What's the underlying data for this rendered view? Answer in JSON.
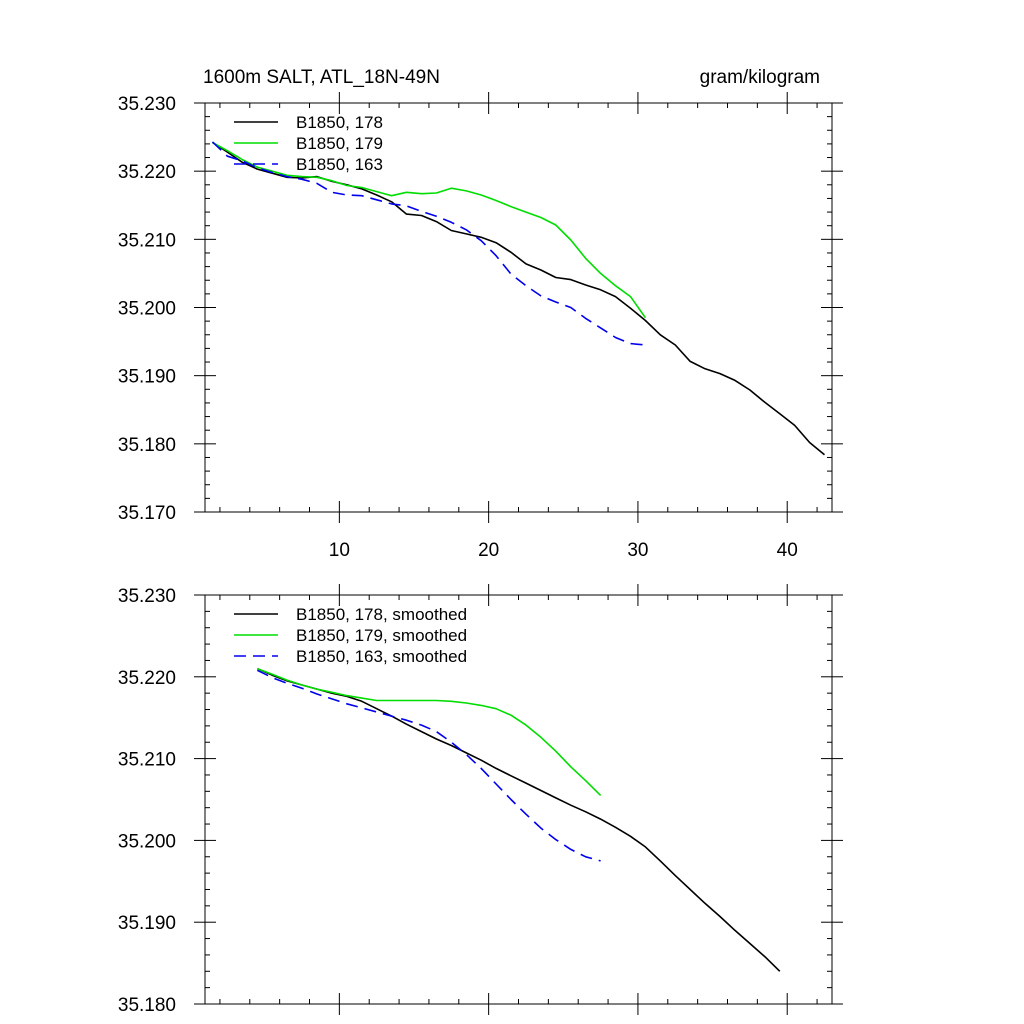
{
  "chart_data": [
    {
      "type": "line",
      "title": "1600m SALT, ATL_18N-49N",
      "units": "gram/kilogram",
      "xlim": [
        1,
        43
      ],
      "ylim": [
        35.17,
        35.23
      ],
      "xticks": [
        10,
        20,
        30,
        40
      ],
      "xtick_labels": [
        "10",
        "20",
        "30",
        "40"
      ],
      "yticks": [
        35.17,
        35.18,
        35.19,
        35.2,
        35.21,
        35.22,
        35.23
      ],
      "ytick_labels": [
        "35.170",
        "35.180",
        "35.190",
        "35.200",
        "35.210",
        "35.220",
        "35.230"
      ],
      "legend_position": "top-left",
      "series": [
        {
          "name": "B1850, 178",
          "color": "#000000",
          "dash": "solid",
          "x": [
            1.5,
            2.5,
            3.5,
            4.5,
            5.5,
            6.5,
            7.5,
            8.5,
            9.5,
            10.5,
            11.5,
            12.5,
            13.5,
            14.5,
            15.5,
            16.5,
            17.5,
            18.5,
            19.5,
            20.5,
            21.5,
            22.5,
            23.5,
            24.5,
            25.5,
            26.5,
            27.5,
            28.5,
            29.5,
            30.5,
            31.5,
            32.5,
            33.5,
            34.5,
            35.5,
            36.5,
            37.5,
            38.5,
            39.5,
            40.5,
            41.5,
            42.5
          ],
          "y": [
            35.2242,
            35.2228,
            35.2213,
            35.2203,
            35.2197,
            35.2191,
            35.219,
            35.2192,
            35.2185,
            35.218,
            35.2174,
            35.2165,
            35.2155,
            35.2137,
            35.2135,
            35.2126,
            35.2113,
            35.2108,
            35.2103,
            35.2095,
            35.2081,
            35.2064,
            35.2055,
            35.2044,
            35.2041,
            35.2033,
            35.2026,
            35.2016,
            35.1999,
            35.1981,
            35.196,
            35.1945,
            35.1921,
            35.191,
            35.1903,
            35.1893,
            35.1879,
            35.1861,
            35.1844,
            35.1827,
            35.1802,
            35.1784
          ]
        },
        {
          "name": "B1850, 179",
          "color": "#00dd00",
          "dash": "solid",
          "x": [
            1.5,
            2.5,
            3.5,
            4.5,
            5.5,
            6.5,
            7.5,
            8.5,
            9.5,
            10.5,
            11.5,
            12.5,
            13.5,
            14.5,
            15.5,
            16.5,
            17.5,
            18.5,
            19.5,
            20.5,
            21.5,
            22.5,
            23.5,
            24.5,
            25.5,
            26.5,
            27.5,
            28.5,
            29.5,
            30.5
          ],
          "y": [
            35.2242,
            35.223,
            35.2217,
            35.2206,
            35.22,
            35.2194,
            35.2192,
            35.2191,
            35.2186,
            35.2179,
            35.2176,
            35.217,
            35.2164,
            35.2169,
            35.2167,
            35.2168,
            35.2175,
            35.2171,
            35.2165,
            35.2157,
            35.2148,
            35.214,
            35.2132,
            35.2121,
            35.2099,
            35.2072,
            35.205,
            35.2032,
            35.2016,
            35.1985
          ]
        },
        {
          "name": "B1850, 163",
          "color": "#0000ee",
          "dash": "dashed",
          "x": [
            1.5,
            2.5,
            3.5,
            4.5,
            5.5,
            6.5,
            7.5,
            8.5,
            9.5,
            10.5,
            11.5,
            12.5,
            13.5,
            14.5,
            15.5,
            16.5,
            17.5,
            18.5,
            19.5,
            20.5,
            21.5,
            22.5,
            23.5,
            24.5,
            25.5,
            26.5,
            27.5,
            28.5,
            29.5,
            30.5
          ],
          "y": [
            35.2243,
            35.2222,
            35.2215,
            35.2205,
            35.2198,
            35.2192,
            35.2188,
            35.2182,
            35.2169,
            35.2165,
            35.2164,
            35.2158,
            35.2152,
            35.2149,
            35.2141,
            35.2134,
            35.2125,
            35.2114,
            35.2098,
            35.2076,
            35.2049,
            35.2032,
            35.2017,
            35.2008,
            35.2,
            35.1984,
            35.197,
            35.1956,
            35.1947,
            35.1945
          ]
        }
      ]
    },
    {
      "type": "line",
      "xlim": [
        1,
        43
      ],
      "ylim": [
        35.18,
        35.23
      ],
      "xticks": [
        10,
        20,
        30,
        40
      ],
      "yticks": [
        35.18,
        35.19,
        35.2,
        35.21,
        35.22,
        35.23
      ],
      "ytick_labels": [
        "35.180",
        "35.190",
        "35.200",
        "35.210",
        "35.220",
        "35.230"
      ],
      "legend_position": "top-left",
      "series": [
        {
          "name": "B1850, 178, smoothed",
          "color": "#000000",
          "dash": "solid",
          "x": [
            4.5,
            5.5,
            6.5,
            7.5,
            8.5,
            9.5,
            10.5,
            11.5,
            12.5,
            13.5,
            14.5,
            15.5,
            16.5,
            17.5,
            18.5,
            19.5,
            20.5,
            21.5,
            22.5,
            23.5,
            24.5,
            25.5,
            26.5,
            27.5,
            28.5,
            29.5,
            30.5,
            31.5,
            32.5,
            33.5,
            34.5,
            35.5,
            36.5,
            37.5,
            38.5,
            39.5
          ],
          "y": [
            35.221,
            35.2202,
            35.2195,
            35.219,
            35.2185,
            35.218,
            35.2176,
            35.217,
            35.2161,
            35.2152,
            35.2142,
            35.2133,
            35.2124,
            35.2116,
            35.2107,
            35.2098,
            35.2088,
            35.2079,
            35.207,
            35.2061,
            35.2052,
            35.2043,
            35.2035,
            35.2026,
            35.2016,
            35.2005,
            35.1992,
            35.1975,
            35.1957,
            35.194,
            35.1923,
            35.1907,
            35.189,
            35.1874,
            35.1858,
            35.184
          ]
        },
        {
          "name": "B1850, 179, smoothed",
          "color": "#00dd00",
          "dash": "solid",
          "x": [
            4.5,
            5.5,
            6.5,
            7.5,
            8.5,
            9.5,
            10.5,
            11.5,
            12.5,
            13.5,
            14.5,
            15.5,
            16.5,
            17.5,
            18.5,
            19.5,
            20.5,
            21.5,
            22.5,
            23.5,
            24.5,
            25.5,
            26.5,
            27.5
          ],
          "y": [
            35.221,
            35.2203,
            35.2196,
            35.219,
            35.2185,
            35.2181,
            35.2177,
            35.2174,
            35.2171,
            35.2171,
            35.2171,
            35.2171,
            35.2171,
            35.217,
            35.2168,
            35.2165,
            35.2161,
            35.2153,
            35.2141,
            35.2126,
            35.2109,
            35.209,
            35.2073,
            35.2055
          ]
        },
        {
          "name": "B1850, 163, smoothed",
          "color": "#0000ee",
          "dash": "dashed",
          "x": [
            4.5,
            5.5,
            6.5,
            7.5,
            8.5,
            9.5,
            10.5,
            11.5,
            12.5,
            13.5,
            14.5,
            15.5,
            16.5,
            17.5,
            18.5,
            19.5,
            20.5,
            21.5,
            22.5,
            23.5,
            24.5,
            25.5,
            26.5,
            27.5
          ],
          "y": [
            35.2208,
            35.2199,
            35.2192,
            35.2186,
            35.2179,
            35.2173,
            35.2167,
            35.2162,
            35.2157,
            35.2152,
            35.2147,
            35.2141,
            35.2133,
            35.212,
            35.2105,
            35.2088,
            35.2069,
            35.205,
            35.2032,
            35.2015,
            35.2001,
            35.1989,
            35.198,
            35.1975
          ]
        }
      ]
    }
  ]
}
